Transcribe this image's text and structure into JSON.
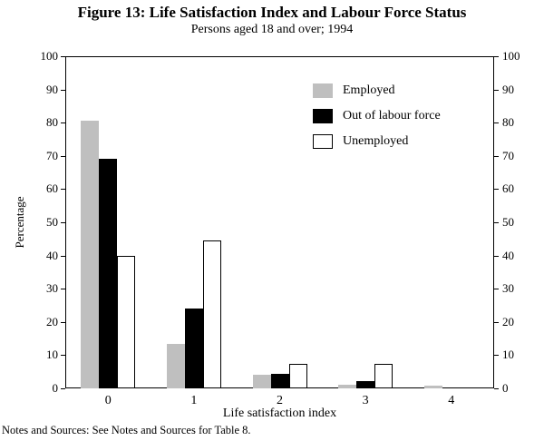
{
  "title": "Figure 13: Life Satisfaction Index and Labour Force Status",
  "subtitle": "Persons aged 18 and over; 1994",
  "footer": "Notes and Sources:  See Notes and Sources for Table 8.",
  "chart_data": {
    "type": "bar",
    "title": "Figure 13: Life Satisfaction Index and Labour Force Status",
    "subtitle": "Persons aged 18 and over; 1994",
    "categories": [
      "0",
      "1",
      "2",
      "3",
      "4"
    ],
    "series": [
      {
        "name": "Employed",
        "color": "#bfbfbf",
        "border": false,
        "values": [
          80.5,
          13.5,
          4,
          1,
          0.8
        ]
      },
      {
        "name": "Out of labour force",
        "color": "#000000",
        "border": false,
        "values": [
          69,
          24,
          4.5,
          2.2,
          0
        ]
      },
      {
        "name": "Unemployed",
        "color": "#ffffff",
        "border": true,
        "values": [
          40,
          44.5,
          7.5,
          7.5,
          0
        ]
      }
    ],
    "xlabel": "Life satisfaction index",
    "ylabel": "Percentage",
    "ylim": [
      0,
      100
    ],
    "yticks": [
      0,
      10,
      20,
      30,
      40,
      50,
      60,
      70,
      80,
      90,
      100
    ],
    "grid": false,
    "legend_position": "top-right-inside",
    "dual_y_axis": true
  }
}
